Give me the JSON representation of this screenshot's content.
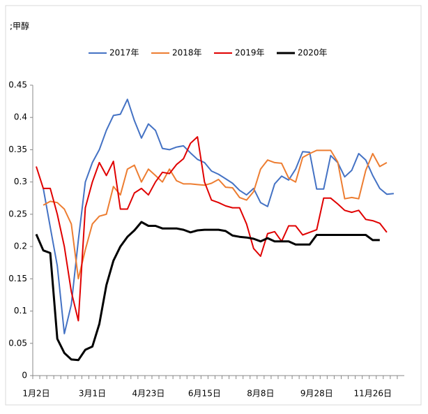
{
  "chart_data": {
    "type": "line",
    "title": ";甲醇",
    "categories": [
      "1月2日",
      null,
      null,
      null,
      null,
      null,
      null,
      null,
      "3月1日",
      null,
      null,
      null,
      null,
      null,
      null,
      null,
      "4月23日",
      null,
      null,
      null,
      null,
      null,
      null,
      null,
      "6月15日",
      null,
      null,
      null,
      null,
      null,
      null,
      null,
      "8月8日",
      null,
      null,
      null,
      null,
      null,
      null,
      null,
      "9月28日",
      null,
      null,
      null,
      null,
      null,
      null,
      null,
      "11月26日",
      null,
      null,
      null,
      null
    ],
    "ylim": [
      0,
      0.45
    ],
    "yticks": [
      0,
      0.05,
      0.1,
      0.15,
      0.2,
      0.25,
      0.3,
      0.35,
      0.4,
      0.45
    ],
    "grid": false,
    "series": [
      {
        "name": "2017年",
        "color": "#4472c4",
        "values": [
          null,
          0.29,
          0.23,
          0.17,
          0.065,
          0.11,
          0.21,
          0.3,
          0.33,
          0.35,
          0.38,
          0.403,
          0.405,
          0.428,
          0.395,
          0.368,
          0.39,
          0.38,
          0.352,
          0.35,
          0.354,
          0.356,
          0.345,
          0.335,
          0.33,
          0.317,
          0.312,
          0.305,
          0.298,
          0.287,
          0.28,
          0.29,
          0.268,
          0.262,
          0.297,
          0.309,
          0.303,
          0.32,
          0.347,
          0.346,
          0.289,
          0.289,
          0.341,
          0.33,
          0.308,
          0.318,
          0.344,
          0.334,
          0.31,
          0.29,
          0.281,
          0.282,
          null
        ]
      },
      {
        "name": "2018年",
        "color": "#ed7d31",
        "values": [
          null,
          0.264,
          0.27,
          0.268,
          0.258,
          0.235,
          0.15,
          0.195,
          0.235,
          0.247,
          0.25,
          0.293,
          0.28,
          0.32,
          0.326,
          0.3,
          0.32,
          0.31,
          0.3,
          0.32,
          0.302,
          0.297,
          0.297,
          0.296,
          0.295,
          0.298,
          0.304,
          0.292,
          0.291,
          0.276,
          0.272,
          0.285,
          0.32,
          0.334,
          0.33,
          0.329,
          0.306,
          0.3,
          0.338,
          0.344,
          0.349,
          0.349,
          0.349,
          0.331,
          0.274,
          0.276,
          0.274,
          0.318,
          0.344,
          0.324,
          0.33,
          null,
          null
        ]
      },
      {
        "name": "2019年",
        "color": "#e00000",
        "values": [
          0.324,
          0.29,
          0.29,
          0.25,
          0.2,
          0.13,
          0.085,
          0.26,
          0.3,
          0.33,
          0.31,
          0.332,
          0.258,
          0.258,
          0.283,
          0.29,
          0.28,
          0.3,
          0.315,
          0.313,
          0.327,
          0.336,
          0.36,
          0.37,
          0.3,
          0.272,
          0.268,
          0.263,
          0.26,
          0.26,
          0.235,
          0.197,
          0.185,
          0.22,
          0.223,
          0.208,
          0.232,
          0.232,
          0.218,
          0.222,
          0.226,
          0.275,
          0.275,
          0.266,
          0.256,
          0.253,
          0.256,
          0.242,
          0.24,
          0.236,
          0.222,
          null,
          null
        ]
      },
      {
        "name": "2020年",
        "color": "#000000",
        "values": [
          0.219,
          0.194,
          0.19,
          0.057,
          0.035,
          0.025,
          0.024,
          0.04,
          0.045,
          0.08,
          0.14,
          0.178,
          0.2,
          0.215,
          0.225,
          0.238,
          0.232,
          0.232,
          0.228,
          0.228,
          0.228,
          0.226,
          0.222,
          0.225,
          0.226,
          0.226,
          0.226,
          0.224,
          0.217,
          0.215,
          0.214,
          0.212,
          0.208,
          0.213,
          0.208,
          0.208,
          0.208,
          0.203,
          0.203,
          0.203,
          0.218,
          0.218,
          0.218,
          0.218,
          0.218,
          0.218,
          0.218,
          0.218,
          0.21,
          0.21,
          null,
          null,
          null
        ]
      }
    ]
  }
}
